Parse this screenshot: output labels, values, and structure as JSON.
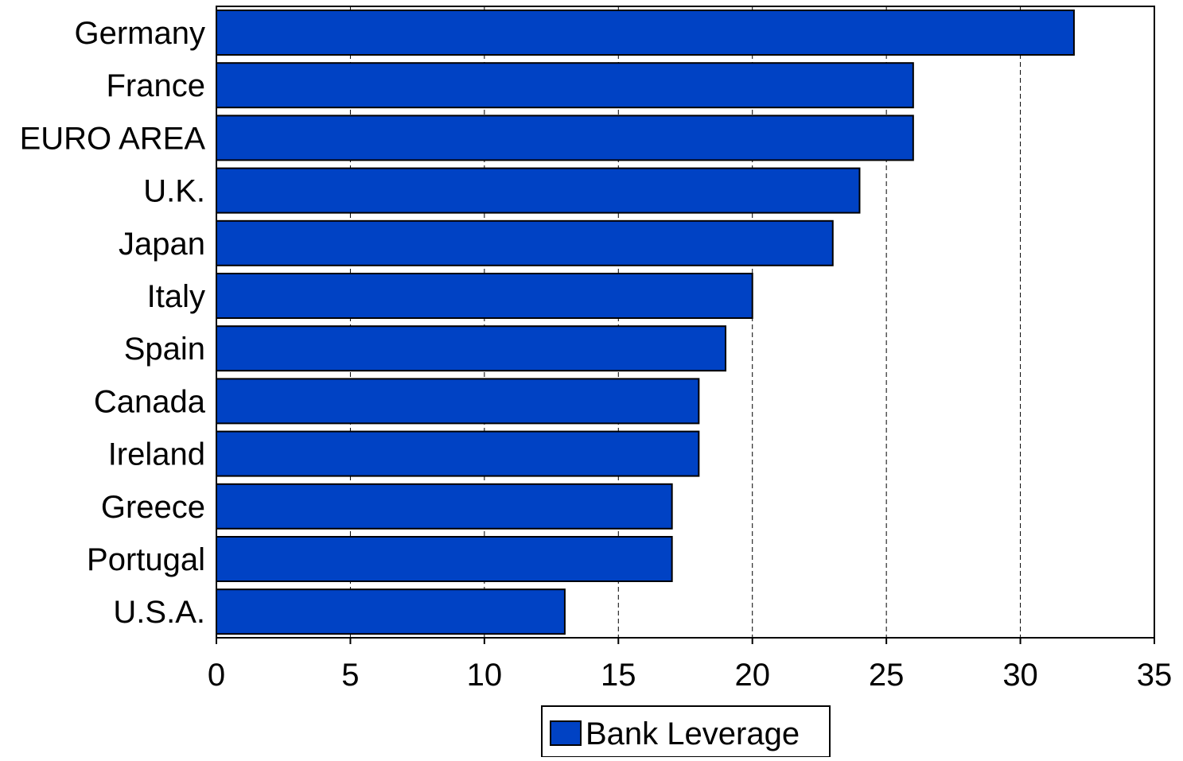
{
  "chart_data": {
    "type": "bar",
    "orientation": "horizontal",
    "categories": [
      "Germany",
      "France",
      "EURO AREA",
      "U.K.",
      "Japan",
      "Italy",
      "Spain",
      "Canada",
      "Ireland",
      "Greece",
      "Portugal",
      "U.S.A."
    ],
    "series": [
      {
        "name": "Bank Leverage",
        "values": [
          32,
          26,
          26,
          24,
          23,
          20,
          19,
          18,
          18,
          17,
          17,
          13
        ]
      }
    ],
    "xlim": [
      0,
      35
    ],
    "xticks": [
      0,
      5,
      10,
      15,
      20,
      25,
      30,
      35
    ],
    "xtick_labels": [
      "0",
      "5",
      "10",
      "15",
      "20",
      "25",
      "30",
      "35"
    ],
    "grid": "vertical dashed",
    "legend": "bottom-center",
    "colors": {
      "bar_fill": "#0042C4",
      "bar_stroke": "#000000",
      "grid": "#000000",
      "axis": "#000000"
    }
  }
}
